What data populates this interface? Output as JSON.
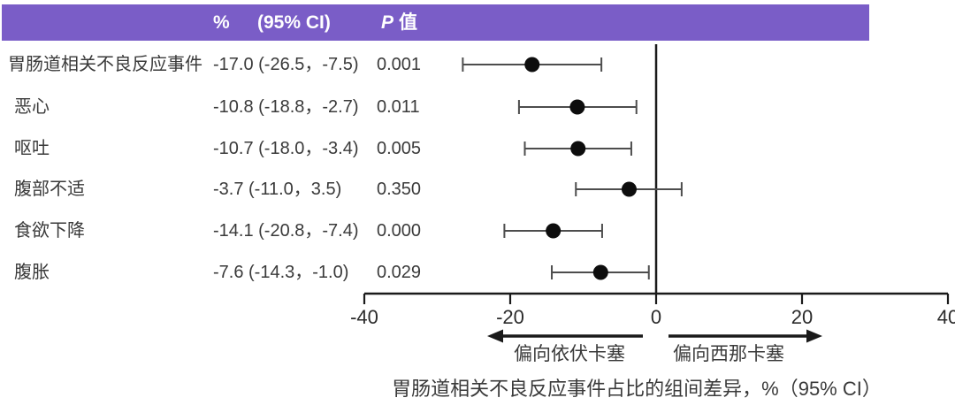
{
  "header": {
    "col_pct": "%",
    "col_ci": "(95% CI)",
    "col_p_italic": "P",
    "col_p_rest": "值"
  },
  "chart_data": {
    "type": "forest",
    "title": "",
    "xlabel": "胃肠道相关不良反应事件占比的组间差异，%（95% CI）",
    "axis": {
      "min": -40,
      "max": 40,
      "ticks": [
        -40,
        -20,
        0,
        20,
        40
      ],
      "zero_line": 0,
      "grid": false
    },
    "direction_labels": {
      "left": "偏向依伏卡塞",
      "right": "偏向西那卡塞"
    },
    "rows": [
      {
        "label": "胃肠道相关不良反应事件",
        "estimate": -17.0,
        "ci_low": -26.5,
        "ci_high": -7.5,
        "ci_text": "-17.0 (-26.5，-7.5)",
        "p": "0.001"
      },
      {
        "label": "恶心",
        "estimate": -10.8,
        "ci_low": -18.8,
        "ci_high": -2.7,
        "ci_text": "-10.8 (-18.8，-2.7)",
        "p": "0.011"
      },
      {
        "label": "呕吐",
        "estimate": -10.7,
        "ci_low": -18.0,
        "ci_high": -3.4,
        "ci_text": "-10.7 (-18.0，-3.4)",
        "p": "0.005"
      },
      {
        "label": "腹部不适",
        "estimate": -3.7,
        "ci_low": -11.0,
        "ci_high": 3.5,
        "ci_text": "-3.7 (-11.0，3.5)",
        "p": "0.350"
      },
      {
        "label": "食欲下降",
        "estimate": -14.1,
        "ci_low": -20.8,
        "ci_high": -7.4,
        "ci_text": "-14.1 (-20.8，-7.4)",
        "p": "0.000"
      },
      {
        "label": "腹胀",
        "estimate": -7.6,
        "ci_low": -14.3,
        "ci_high": -1.0,
        "ci_text": "-7.6 (-14.3，-1.0)",
        "p": "0.029"
      }
    ]
  },
  "colors": {
    "header_bg": "#7a5dc7",
    "header_text": "#ffffff",
    "dot": "#0d0d0d",
    "error_bar": "#4d4d4d",
    "axis": "#1a1a1a",
    "text": "#3a3a3a"
  }
}
